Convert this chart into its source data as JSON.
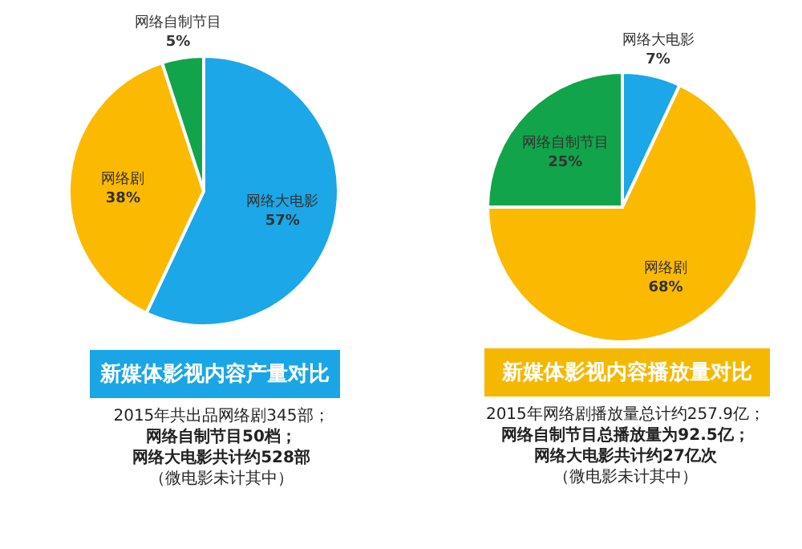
{
  "chart_data": [
    {
      "type": "pie",
      "title": "新媒体影视内容产量对比",
      "categories": [
        "网络大电影",
        "网络剧",
        "网络自制节目"
      ],
      "values": [
        57,
        38,
        5
      ],
      "value_labels": [
        "57%",
        "38%",
        "5%"
      ],
      "colors": [
        "#1ba7e8",
        "#fbb900",
        "#12a44a"
      ],
      "annotations": [
        "2015年共出品网络剧345部；",
        "网络自制节目50档；",
        "网络大电影共计约528部",
        "（微电影未计其中）"
      ]
    },
    {
      "type": "pie",
      "title": "新媒体影视内容播放量对比",
      "categories": [
        "网络大电影",
        "网络剧",
        "网络自制节目"
      ],
      "values": [
        7,
        68,
        25
      ],
      "value_labels": [
        "7%",
        "68%",
        "25%"
      ],
      "colors": [
        "#1ba7e8",
        "#fbb900",
        "#12a44a"
      ],
      "annotations": [
        "2015年网络剧播放量总计约257.9亿；",
        "网络自制节目总播放量为92.5亿；",
        "网络大电影共计约27亿次",
        "（微电影未计其中）"
      ]
    }
  ]
}
